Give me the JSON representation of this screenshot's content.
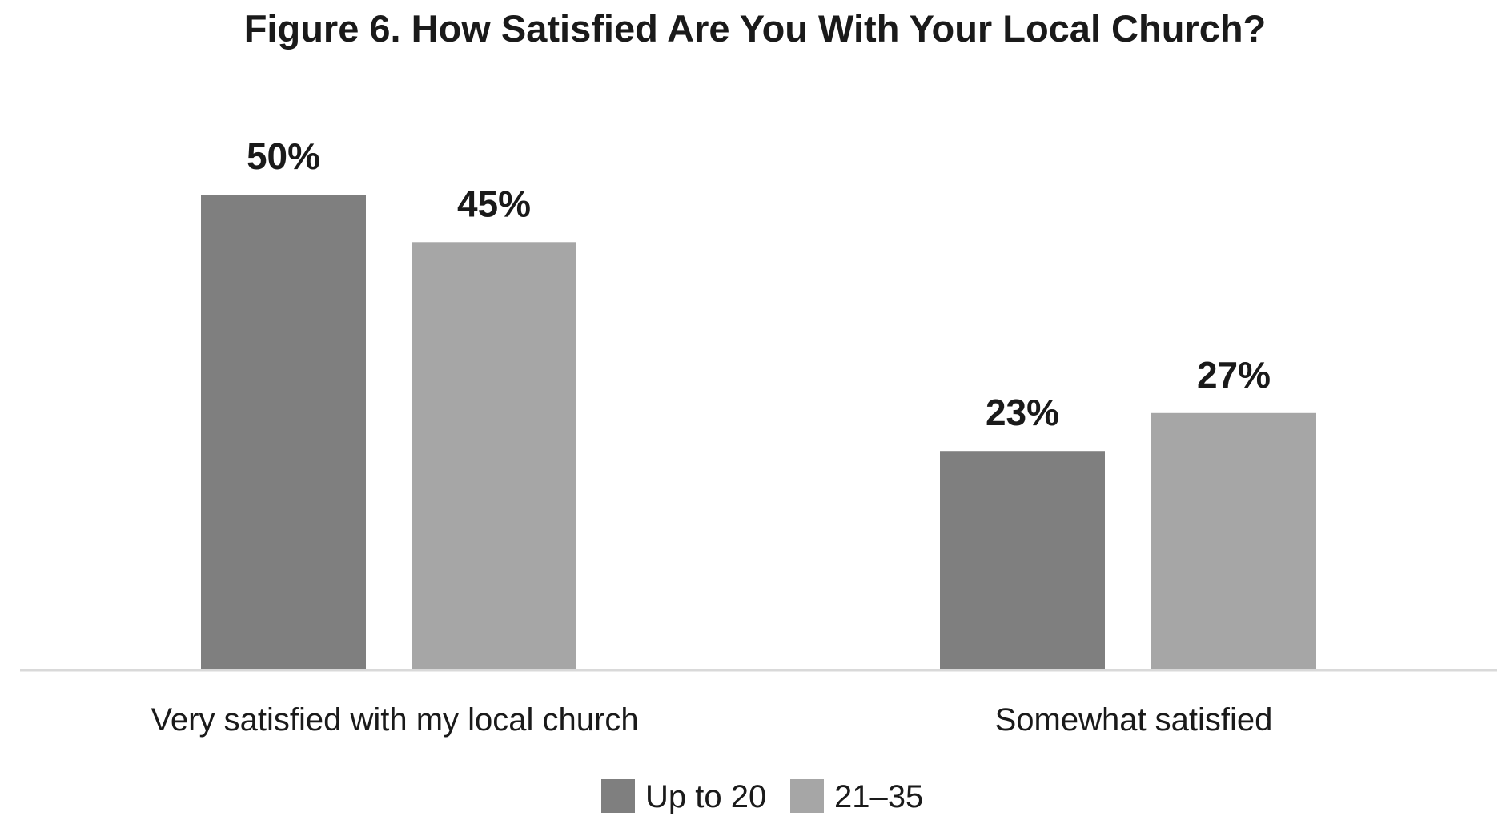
{
  "chart_data": {
    "type": "bar",
    "title": "Figure 6. How Satisfied Are You With Your Local Church?",
    "categories": [
      "Very satisfied with my local church",
      "Somewhat satisfied"
    ],
    "series": [
      {
        "name": "Up to 20",
        "values": [
          50,
          23
        ],
        "labels": [
          "50%",
          "23%"
        ],
        "color": "#7f7f7f"
      },
      {
        "name": "21–35",
        "values": [
          45,
          27
        ],
        "labels": [
          "45%",
          "27%"
        ],
        "color": "#a6a6a6"
      }
    ],
    "ylim": [
      0,
      50
    ],
    "grid": false,
    "legend_position": "bottom",
    "axis_color": "#d9d9d9"
  }
}
